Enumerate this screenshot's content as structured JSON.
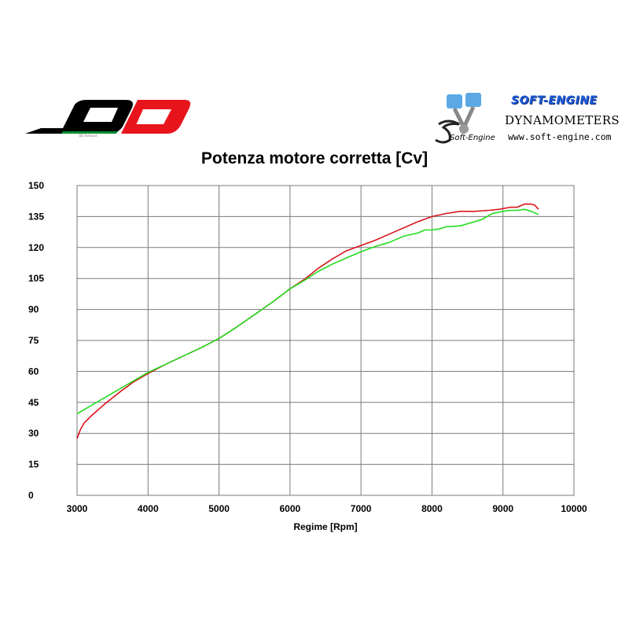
{
  "branding": {
    "left_logo_name": "QD",
    "left_logo_tagline": "QD Exhaust",
    "right_logo_title": "SOFT-ENGINE",
    "right_logo_subtitle": "DYNAMOMETERS",
    "right_logo_url": "www.soft-engine.com",
    "right_logo_wordmark": "Soft-Engine"
  },
  "chart_data": {
    "type": "line",
    "title": "Potenza motore corretta [Cv]",
    "xlabel": "Regime [Rpm]",
    "ylabel": "",
    "xlim": [
      3000,
      10000
    ],
    "ylim": [
      0,
      150
    ],
    "x_ticks": [
      3000,
      4000,
      5000,
      6000,
      7000,
      8000,
      9000,
      10000
    ],
    "y_ticks": [
      0,
      15,
      30,
      45,
      60,
      75,
      90,
      105,
      120,
      135,
      150
    ],
    "grid": true,
    "legend": "none",
    "series": [
      {
        "color": "#d8141c",
        "points": [
          [
            3000,
            27.5
          ],
          [
            3050,
            32
          ],
          [
            3100,
            35
          ],
          [
            3200,
            38.5
          ],
          [
            3400,
            44.5
          ],
          [
            3600,
            50
          ],
          [
            3800,
            55
          ],
          [
            4000,
            59
          ],
          [
            4250,
            63.5
          ],
          [
            4500,
            67.5
          ],
          [
            4750,
            71.5
          ],
          [
            5000,
            76
          ],
          [
            5250,
            81.5
          ],
          [
            5500,
            87.5
          ],
          [
            5750,
            93.5
          ],
          [
            6000,
            100
          ],
          [
            6200,
            104.5
          ],
          [
            6400,
            110
          ],
          [
            6600,
            114.5
          ],
          [
            6800,
            118.5
          ],
          [
            7000,
            121
          ],
          [
            7200,
            123.5
          ],
          [
            7400,
            126.5
          ],
          [
            7600,
            129.5
          ],
          [
            7800,
            132.5
          ],
          [
            8000,
            135
          ],
          [
            8200,
            136.5
          ],
          [
            8400,
            137.5
          ],
          [
            8600,
            137.5
          ],
          [
            8800,
            138
          ],
          [
            8950,
            138.5
          ],
          [
            9100,
            139.5
          ],
          [
            9200,
            139.5
          ],
          [
            9300,
            141
          ],
          [
            9400,
            141
          ],
          [
            9450,
            140.5
          ],
          [
            9500,
            138.5
          ]
        ]
      },
      {
        "color": "#22dd1e",
        "points": [
          [
            3000,
            39.5
          ],
          [
            3200,
            43.5
          ],
          [
            3400,
            47.5
          ],
          [
            3600,
            51.5
          ],
          [
            3800,
            55.5
          ],
          [
            4000,
            59.5
          ],
          [
            4250,
            63.5
          ],
          [
            4500,
            67.5
          ],
          [
            4750,
            71.5
          ],
          [
            5000,
            76
          ],
          [
            5250,
            81.5
          ],
          [
            5500,
            87.5
          ],
          [
            5750,
            93.5
          ],
          [
            6000,
            100
          ],
          [
            6200,
            104
          ],
          [
            6400,
            108.5
          ],
          [
            6600,
            112
          ],
          [
            6800,
            115
          ],
          [
            7000,
            118
          ],
          [
            7200,
            120.5
          ],
          [
            7400,
            122.5
          ],
          [
            7500,
            124
          ],
          [
            7600,
            125.5
          ],
          [
            7800,
            127
          ],
          [
            7900,
            128.5
          ],
          [
            8000,
            128.5
          ],
          [
            8100,
            129
          ],
          [
            8200,
            130
          ],
          [
            8400,
            130.5
          ],
          [
            8500,
            131.5
          ],
          [
            8700,
            133.5
          ],
          [
            8850,
            136.5
          ],
          [
            9000,
            137.5
          ],
          [
            9100,
            138
          ],
          [
            9200,
            138
          ],
          [
            9300,
            138.5
          ],
          [
            9400,
            137.5
          ],
          [
            9500,
            136
          ]
        ]
      }
    ]
  }
}
